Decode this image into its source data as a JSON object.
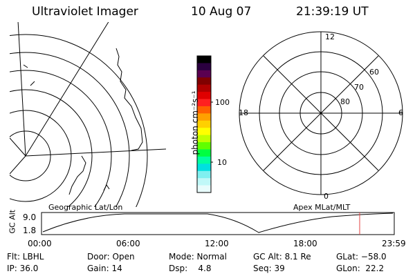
{
  "header": {
    "instrument": "Ultraviolet Imager",
    "date": "10 Aug 07",
    "time": "21:39:19 UT"
  },
  "colorbar": {
    "unit_label": "photon cm⁻²s⁻¹",
    "ticks": [
      "100",
      "10"
    ],
    "colors": [
      "#000000",
      "#2b0040",
      "#5a0050",
      "#800000",
      "#b00000",
      "#e00000",
      "#ff2020",
      "#ff6000",
      "#ffa000",
      "#ffd000",
      "#ffff00",
      "#c0ff00",
      "#60ff00",
      "#00ff40",
      "#00ffa0",
      "#00e0e0",
      "#80f0f0",
      "#c0f8f8",
      "#e8fcfc"
    ]
  },
  "polar_plot": {
    "mlt_labels": {
      "top": "12",
      "bottom": "0",
      "left": "18",
      "right": "6"
    },
    "lat_labels": [
      "60",
      "70",
      "80"
    ]
  },
  "map_labels": {
    "left": "Geographic Lat/Lon",
    "right": "Apex MLat/MLT"
  },
  "orbit": {
    "ylabel": "GC Alt",
    "y_max": "9.0",
    "y_min": "1.8",
    "x_ticks": [
      "00:00",
      "06:00",
      "12:00",
      "18:00",
      "23:59"
    ],
    "marker_color": "#e04040"
  },
  "status": {
    "filter": "Flt: LBHL",
    "door": "Door: Open",
    "mode": "Mode: Normal",
    "gc_alt": "GC Alt: 8.1 Re",
    "glat": "GLat: −58.0",
    "ip": "IP: 36.0",
    "gain": "Gain: 14",
    "dsp": "Dsp:    4.8",
    "seq": "Seq: 39",
    "glon": "GLon:  22.2"
  }
}
